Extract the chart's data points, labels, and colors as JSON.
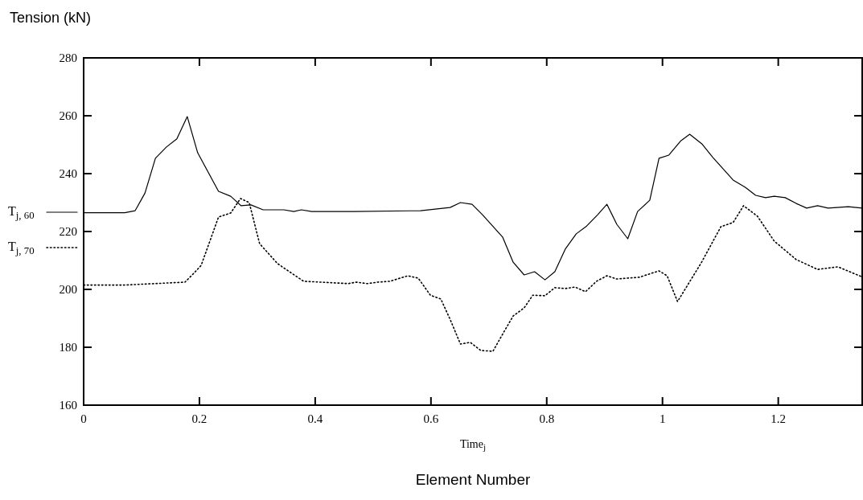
{
  "chart_data": {
    "type": "line",
    "ylabel": "Tension (kN)",
    "xlabel": "Time$_{j}$",
    "annotations": [
      "Element Number"
    ],
    "xlim": [
      0,
      1.345
    ],
    "xticks": [
      0,
      0.2,
      0.4,
      0.6,
      0.8,
      1,
      1.2
    ],
    "ylim": [
      160,
      280
    ],
    "yticks": [
      160,
      180,
      200,
      220,
      240,
      260,
      280
    ],
    "grid": false,
    "legend": "left",
    "series": [
      {
        "name": "T$_{j, 60}$",
        "color": "#000000",
        "line_style": "solid",
        "x": [
          0,
          0.071,
          0.089,
          0.106,
          0.124,
          0.143,
          0.161,
          0.179,
          0.197,
          0.233,
          0.254,
          0.272,
          0.289,
          0.31,
          0.346,
          0.363,
          0.376,
          0.394,
          0.467,
          0.582,
          0.633,
          0.651,
          0.671,
          0.689,
          0.724,
          0.742,
          0.761,
          0.779,
          0.797,
          0.814,
          0.832,
          0.851,
          0.869,
          0.888,
          0.904,
          0.921,
          0.94,
          0.957,
          0.978,
          0.994,
          1.011,
          1.032,
          1.047,
          1.068,
          1.087,
          1.122,
          1.143,
          1.161,
          1.178,
          1.193,
          1.212,
          1.231,
          1.249,
          1.268,
          1.286,
          1.321,
          1.345
        ],
        "values": [
          226.5,
          226.5,
          227.2,
          233.3,
          245.3,
          249.2,
          252,
          259.7,
          247.2,
          233.9,
          232.2,
          228.9,
          229.2,
          227.5,
          227.5,
          226.9,
          227.5,
          226.9,
          226.9,
          227.2,
          228.3,
          230,
          229.4,
          225.8,
          218,
          209.4,
          205,
          206.1,
          203.3,
          206.1,
          213.9,
          219.2,
          221.9,
          225.8,
          229.4,
          222.5,
          217.5,
          226.9,
          230.8,
          245.3,
          246.4,
          251.4,
          253.6,
          250.3,
          245.6,
          237.8,
          235.3,
          232.5,
          231.7,
          232.2,
          231.7,
          229.7,
          228.1,
          228.9,
          228.1,
          228.6,
          228.1
        ]
      },
      {
        "name": "T$_{j, 70}$",
        "color": "#000000",
        "line_style": "dotted",
        "x": [
          0,
          0.07,
          0.175,
          0.19,
          0.203,
          0.233,
          0.254,
          0.271,
          0.286,
          0.304,
          0.335,
          0.38,
          0.439,
          0.457,
          0.471,
          0.49,
          0.508,
          0.529,
          0.56,
          0.578,
          0.599,
          0.617,
          0.633,
          0.651,
          0.668,
          0.686,
          0.707,
          0.726,
          0.742,
          0.761,
          0.776,
          0.797,
          0.814,
          0.832,
          0.849,
          0.867,
          0.886,
          0.904,
          0.921,
          0.96,
          0.994,
          1.008,
          1.026,
          1.067,
          1.101,
          1.122,
          1.14,
          1.164,
          1.193,
          1.231,
          1.268,
          1.303,
          1.344
        ],
        "values": [
          201.5,
          201.5,
          202.5,
          205.5,
          208.3,
          225,
          226.4,
          231.4,
          230,
          215.8,
          208.9,
          202.8,
          202.2,
          202,
          202.5,
          202,
          202.5,
          202.8,
          204.7,
          203.9,
          198,
          196.7,
          189.7,
          181.1,
          181.7,
          178.9,
          178.6,
          185.3,
          190.8,
          193.6,
          198,
          197.8,
          200.6,
          200.3,
          200.8,
          199.2,
          202.8,
          204.7,
          203.6,
          204.2,
          206.4,
          204.7,
          195.8,
          209.2,
          221.7,
          223.1,
          228.9,
          225.3,
          216.7,
          210.3,
          206.9,
          207.8,
          204.4
        ]
      }
    ]
  }
}
